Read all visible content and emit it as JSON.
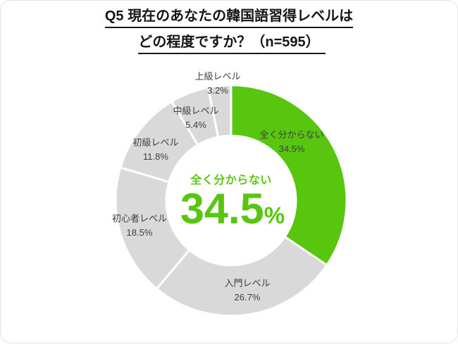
{
  "title": {
    "line1": "Q5 現在のあなたの韓国語習得レベルは",
    "line2": "どの程度ですか？（n=595）"
  },
  "chart_data": {
    "type": "pie",
    "subtype": "donut",
    "title": "Q5 現在のあなたの韓国語習得レベルはどの程度ですか？",
    "sample_size_label": "n=595",
    "categories": [
      "全く分からない",
      "入門レベル",
      "初心者レベル",
      "初級レベル",
      "中級レベル",
      "上級レベル"
    ],
    "values": [
      34.5,
      26.7,
      18.5,
      11.8,
      5.4,
      3.2
    ],
    "unit": "%",
    "start_angle_deg": 0,
    "direction": "clockwise",
    "legend": "none",
    "highlight_index": 0,
    "colors": {
      "highlight": "#58C60F",
      "muted": "#D9D9D9",
      "label_text": "#404040"
    },
    "center": {
      "label": "全く分からない",
      "value": "34.5",
      "unit": "%"
    }
  }
}
